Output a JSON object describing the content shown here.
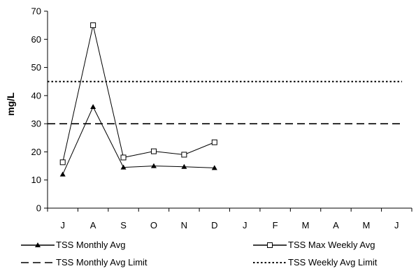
{
  "chart_data": {
    "type": "line",
    "title": "",
    "xlabel": "",
    "ylabel": "mg/L",
    "ylim": [
      0,
      70
    ],
    "yticks": [
      0,
      10,
      20,
      30,
      40,
      50,
      60,
      70
    ],
    "categories": [
      "J",
      "A",
      "S",
      "O",
      "N",
      "D",
      "J",
      "F",
      "M",
      "A",
      "M",
      "J"
    ],
    "grid": false,
    "legend_position": "bottom",
    "series": [
      {
        "name": "TSS Monthly Avg",
        "style": "solid",
        "marker": "filled-triangle",
        "values": [
          12,
          36,
          14.5,
          15,
          14.7,
          14.3,
          null,
          null,
          null,
          null,
          null,
          null
        ]
      },
      {
        "name": "TSS Max Weekly Avg",
        "style": "solid",
        "marker": "open-square",
        "values": [
          16.3,
          65,
          18,
          20.2,
          19,
          23.4,
          null,
          null,
          null,
          null,
          null,
          null
        ]
      },
      {
        "name": "TSS Monthly Avg Limit",
        "style": "dashed",
        "marker": "none",
        "values": [
          30,
          30,
          30,
          30,
          30,
          30,
          30,
          30,
          30,
          30,
          30,
          30
        ]
      },
      {
        "name": "TSS Weekly Avg Limit",
        "style": "dotted",
        "marker": "none",
        "values": [
          45,
          45,
          45,
          45,
          45,
          45,
          45,
          45,
          45,
          45,
          45,
          45
        ]
      }
    ],
    "colors": {
      "line": "#000000",
      "background": "#ffffff"
    }
  }
}
